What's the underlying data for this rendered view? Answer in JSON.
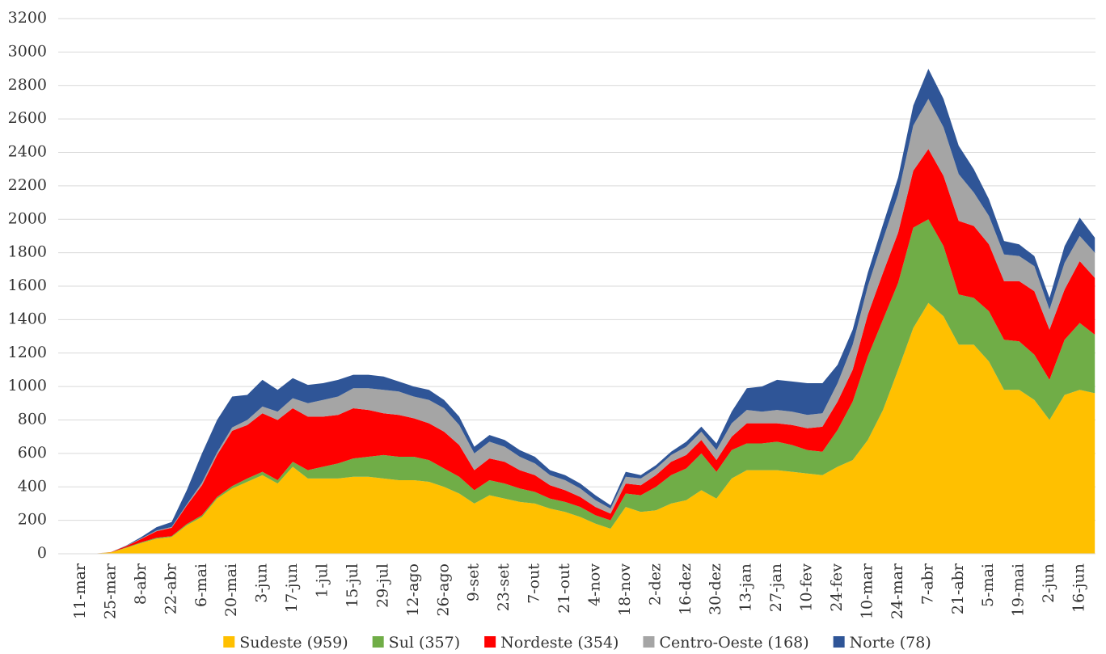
{
  "chart_data": {
    "type": "stacked-area",
    "categories": [
      "11-mar",
      null,
      "25-mar",
      null,
      "8-abr",
      null,
      "22-abr",
      null,
      "6-mai",
      null,
      "20-mai",
      null,
      "3-jun",
      null,
      "17-jun",
      null,
      "1-jul",
      null,
      "15-jul",
      null,
      "29-jul",
      null,
      "12-ago",
      null,
      "26-ago",
      null,
      "9-set",
      null,
      "23-set",
      null,
      "7-out",
      null,
      "21-out",
      null,
      "4-nov",
      null,
      "18-nov",
      null,
      "2-dez",
      null,
      "16-dez",
      null,
      "30-dez",
      null,
      "13-jan",
      null,
      "27-jan",
      null,
      "10-fev",
      null,
      "24-fev",
      null,
      "10-mar",
      null,
      "24-mar",
      null,
      "7-abr",
      null,
      "21-abr",
      null,
      "5-mai",
      null,
      "19-mai",
      null,
      "2-jun",
      null,
      "16-jun",
      null
    ],
    "series": [
      {
        "name": "Sudeste (959)",
        "color": "#ffc000",
        "values": [
          0,
          2,
          8,
          35,
          65,
          90,
          100,
          170,
          220,
          330,
          390,
          430,
          470,
          420,
          520,
          450,
          450,
          450,
          460,
          460,
          450,
          440,
          440,
          430,
          400,
          360,
          300,
          350,
          330,
          310,
          300,
          270,
          250,
          220,
          180,
          150,
          280,
          250,
          260,
          300,
          320,
          380,
          330,
          450,
          500,
          500,
          500,
          490,
          480,
          470,
          520,
          560,
          680,
          860,
          1100,
          1350,
          1500,
          1420,
          1250,
          1250,
          1150,
          980,
          980,
          920,
          800,
          950,
          980,
          960
        ]
      },
      {
        "name": "Sul (357)",
        "color": "#70ad47",
        "values": [
          0,
          0,
          1,
          3,
          4,
          5,
          5,
          8,
          10,
          10,
          15,
          20,
          20,
          20,
          30,
          50,
          70,
          90,
          110,
          120,
          140,
          140,
          140,
          130,
          110,
          100,
          80,
          90,
          90,
          80,
          70,
          60,
          60,
          60,
          50,
          50,
          80,
          100,
          140,
          170,
          190,
          220,
          160,
          170,
          160,
          160,
          170,
          160,
          140,
          140,
          220,
          350,
          500,
          540,
          520,
          600,
          500,
          420,
          300,
          280,
          300,
          300,
          290,
          270,
          240,
          330,
          400,
          350
        ]
      },
      {
        "name": "Nordeste (354)",
        "color": "#ff0000",
        "values": [
          0,
          0,
          1,
          8,
          20,
          40,
          50,
          110,
          180,
          250,
          330,
          320,
          350,
          360,
          320,
          320,
          300,
          290,
          300,
          280,
          250,
          250,
          230,
          220,
          220,
          190,
          120,
          130,
          130,
          110,
          100,
          80,
          70,
          60,
          50,
          40,
          60,
          60,
          70,
          80,
          80,
          80,
          70,
          80,
          120,
          120,
          110,
          120,
          130,
          150,
          170,
          190,
          250,
          280,
          300,
          340,
          420,
          420,
          440,
          430,
          400,
          350,
          360,
          380,
          300,
          300,
          370,
          340
        ]
      },
      {
        "name": "Centro-Oeste (168)",
        "color": "#a5a5a5",
        "values": [
          0,
          0,
          0,
          2,
          3,
          4,
          5,
          7,
          15,
          15,
          20,
          30,
          40,
          50,
          60,
          80,
          100,
          110,
          120,
          130,
          140,
          140,
          130,
          140,
          140,
          120,
          100,
          100,
          90,
          80,
          70,
          60,
          60,
          50,
          40,
          30,
          40,
          40,
          40,
          40,
          50,
          50,
          60,
          80,
          80,
          70,
          80,
          80,
          80,
          80,
          110,
          150,
          170,
          200,
          230,
          270,
          300,
          290,
          280,
          200,
          170,
          160,
          150,
          150,
          120,
          160,
          150,
          150
        ]
      },
      {
        "name": "Norte (78)",
        "color": "#2f5597",
        "values": [
          0,
          0,
          0,
          2,
          8,
          20,
          30,
          85,
          175,
          195,
          185,
          150,
          160,
          130,
          120,
          110,
          100,
          100,
          80,
          80,
          80,
          60,
          60,
          60,
          50,
          50,
          40,
          40,
          40,
          40,
          40,
          30,
          30,
          30,
          30,
          20,
          30,
          20,
          20,
          20,
          30,
          30,
          40,
          70,
          130,
          150,
          180,
          180,
          190,
          180,
          110,
          90,
          80,
          90,
          100,
          120,
          180,
          170,
          170,
          140,
          100,
          80,
          70,
          60,
          70,
          100,
          110,
          90
        ]
      }
    ],
    "ylim": [
      0,
      3200
    ],
    "yticks": [
      0,
      200,
      400,
      600,
      800,
      1000,
      1200,
      1400,
      1600,
      1800,
      2000,
      2200,
      2400,
      2600,
      2800,
      3000,
      3200
    ],
    "grid": true,
    "legend": "bottom"
  }
}
